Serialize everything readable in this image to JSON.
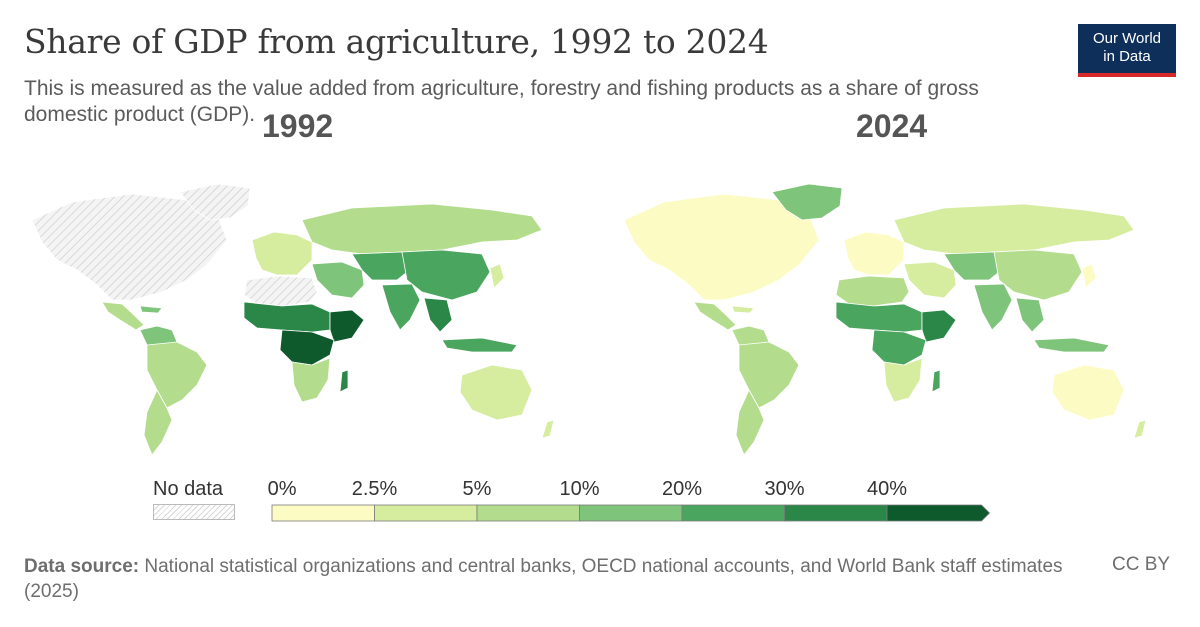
{
  "header": {
    "title": "Share of GDP from agriculture, 1992 to 2024",
    "subtitle": "This is measured as the value added from agriculture, forestry and fishing products as a share of gross domestic product (GDP).",
    "logo_line1": "Our World",
    "logo_line2": "in Data"
  },
  "maps": [
    {
      "year": "1992"
    },
    {
      "year": "2024"
    }
  ],
  "legend": {
    "no_data_label": "No data",
    "ticks": [
      "0%",
      "2.5%",
      "5%",
      "10%",
      "20%",
      "30%",
      "40%"
    ],
    "bin_colors": [
      "#fdfbc4",
      "#d6ec9e",
      "#b3dd8c",
      "#7fc47b",
      "#4aa55f",
      "#2a8747",
      "#0f5a2c"
    ]
  },
  "map_colors": {
    "no_data": "#f2f2f2",
    "border": "#ffffff"
  },
  "footer": {
    "source_label": "Data source:",
    "source_text": "National statistical organizations and central banks, OECD national accounts, and World Bank staff estimates (2025)",
    "license": "CC BY"
  }
}
